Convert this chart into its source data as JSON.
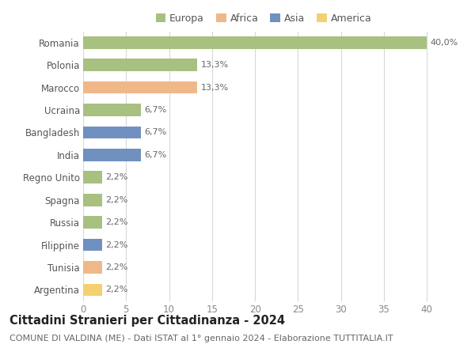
{
  "countries": [
    "Romania",
    "Polonia",
    "Marocco",
    "Ucraina",
    "Bangladesh",
    "India",
    "Regno Unito",
    "Spagna",
    "Russia",
    "Filippine",
    "Tunisia",
    "Argentina"
  ],
  "values": [
    40.0,
    13.3,
    13.3,
    6.7,
    6.7,
    6.7,
    2.2,
    2.2,
    2.2,
    2.2,
    2.2,
    2.2
  ],
  "labels": [
    "40,0%",
    "13,3%",
    "13,3%",
    "6,7%",
    "6,7%",
    "6,7%",
    "2,2%",
    "2,2%",
    "2,2%",
    "2,2%",
    "2,2%",
    "2,2%"
  ],
  "continents": [
    "Europa",
    "Europa",
    "Africa",
    "Europa",
    "Asia",
    "Asia",
    "Europa",
    "Europa",
    "Europa",
    "Asia",
    "Africa",
    "America"
  ],
  "continent_colors": {
    "Europa": "#a8c080",
    "Africa": "#f0b889",
    "Asia": "#7090c0",
    "America": "#f5d070"
  },
  "legend_order": [
    "Europa",
    "Africa",
    "Asia",
    "America"
  ],
  "xlim": [
    0,
    42
  ],
  "xticks": [
    0,
    5,
    10,
    15,
    20,
    25,
    30,
    35,
    40
  ],
  "title": "Cittadini Stranieri per Cittadinanza - 2024",
  "subtitle": "COMUNE DI VALDINA (ME) - Dati ISTAT al 1° gennaio 2024 - Elaborazione TUTTITALIA.IT",
  "bg_color": "#ffffff",
  "grid_color": "#d8d8d8",
  "bar_height": 0.55,
  "label_fontsize": 8,
  "tick_label_fontsize": 8.5,
  "legend_fontsize": 9,
  "title_fontsize": 10.5,
  "subtitle_fontsize": 8
}
